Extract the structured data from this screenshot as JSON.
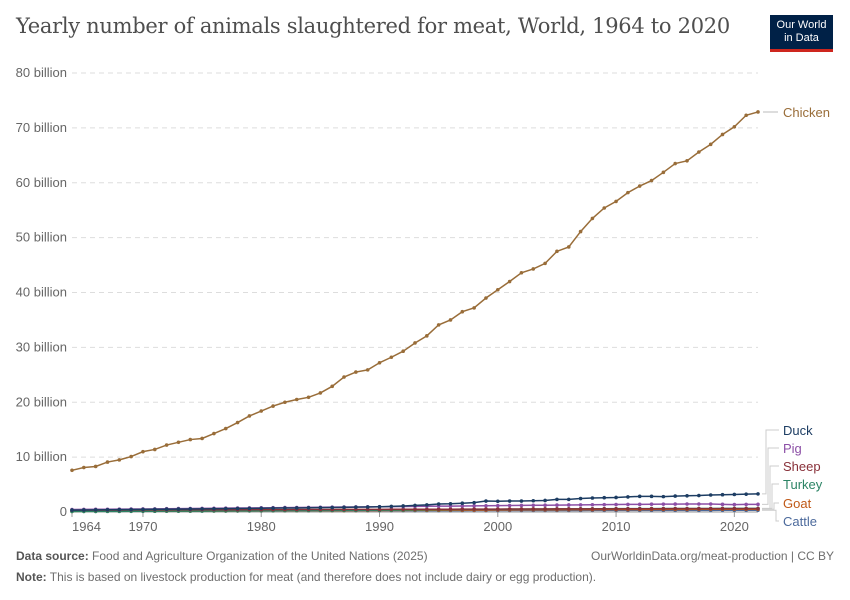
{
  "title": "Yearly number of animals slaughtered for meat, World, 1964 to 2020",
  "logo": {
    "line1": "Our World",
    "line2": "in Data"
  },
  "footer": {
    "source_label": "Data source:",
    "source": "Food and Agriculture Organization of the United Nations (2025)",
    "url": "OurWorldinData.org/meat-production | CC BY",
    "note_label": "Note:",
    "note": "This is based on livestock production for meat (and therefore does not include dairy or egg production)."
  },
  "chart_data": {
    "type": "line",
    "title": "Yearly number of animals slaughtered for meat, World, 1964 to 2020",
    "xlim": [
      1964,
      2022
    ],
    "ylim": [
      0,
      80
    ],
    "grid": true,
    "legend": "right-labels",
    "x_ticks": [
      "1964",
      "1970",
      "1980",
      "1990",
      "2000",
      "2010",
      "2020"
    ],
    "y_ticks": [
      {
        "v": 0,
        "label": "0"
      },
      {
        "v": 10,
        "label": "10 billion"
      },
      {
        "v": 20,
        "label": "20 billion"
      },
      {
        "v": 30,
        "label": "30 billion"
      },
      {
        "v": 40,
        "label": "40 billion"
      },
      {
        "v": 50,
        "label": "50 billion"
      },
      {
        "v": 60,
        "label": "60 billion"
      },
      {
        "v": 70,
        "label": "70 billion"
      },
      {
        "v": 80,
        "label": "80 billion"
      }
    ],
    "unit": "billion",
    "series": [
      {
        "name": "Chicken",
        "color": "#996d39",
        "values": [
          7.6,
          8.1,
          8.3,
          9.1,
          9.5,
          10.1,
          11.0,
          11.4,
          12.2,
          12.7,
          13.2,
          13.4,
          14.3,
          15.2,
          16.3,
          17.5,
          18.4,
          19.3,
          20.0,
          20.5,
          20.9,
          21.7,
          22.9,
          24.6,
          25.5,
          25.9,
          27.2,
          28.2,
          29.3,
          30.8,
          32.1,
          34.1,
          35.0,
          36.5,
          37.2,
          39.0,
          40.5,
          42.0,
          43.6,
          44.3,
          45.3,
          47.5,
          48.3,
          51.1,
          53.5,
          55.4,
          56.6,
          58.2,
          59.4,
          60.4,
          61.9,
          63.5,
          64.0,
          65.6,
          67.0,
          68.8,
          70.2,
          72.3,
          72.9
        ]
      },
      {
        "name": "Duck",
        "color": "#1d3d63",
        "values": [
          0.35,
          0.37,
          0.39,
          0.41,
          0.43,
          0.45,
          0.47,
          0.49,
          0.51,
          0.53,
          0.55,
          0.57,
          0.59,
          0.61,
          0.63,
          0.66,
          0.68,
          0.7,
          0.72,
          0.74,
          0.77,
          0.79,
          0.82,
          0.85,
          0.88,
          0.91,
          0.95,
          1.02,
          1.1,
          1.2,
          1.3,
          1.45,
          1.5,
          1.6,
          1.7,
          2.0,
          1.95,
          2.0,
          2.0,
          2.05,
          2.1,
          2.3,
          2.3,
          2.45,
          2.55,
          2.6,
          2.65,
          2.75,
          2.85,
          2.85,
          2.8,
          2.9,
          2.95,
          3.0,
          3.1,
          3.15,
          3.2,
          3.25,
          3.3
        ]
      },
      {
        "name": "Pig",
        "color": "#8c4fa6",
        "values": [
          0.45,
          0.47,
          0.49,
          0.5,
          0.52,
          0.54,
          0.55,
          0.57,
          0.6,
          0.62,
          0.64,
          0.66,
          0.68,
          0.7,
          0.72,
          0.74,
          0.76,
          0.78,
          0.8,
          0.82,
          0.84,
          0.86,
          0.88,
          0.9,
          0.92,
          0.94,
          0.96,
          0.98,
          1.0,
          1.02,
          1.04,
          1.06,
          1.08,
          1.1,
          1.12,
          1.14,
          1.16,
          1.18,
          1.2,
          1.22,
          1.24,
          1.26,
          1.28,
          1.3,
          1.32,
          1.34,
          1.36,
          1.38,
          1.4,
          1.42,
          1.43,
          1.44,
          1.45,
          1.46,
          1.45,
          1.4,
          1.35,
          1.38,
          1.4
        ]
      },
      {
        "name": "Sheep",
        "color": "#883039",
        "values": [
          0.35,
          0.36,
          0.36,
          0.37,
          0.37,
          0.38,
          0.38,
          0.39,
          0.39,
          0.4,
          0.4,
          0.41,
          0.41,
          0.42,
          0.42,
          0.43,
          0.43,
          0.44,
          0.44,
          0.45,
          0.45,
          0.46,
          0.46,
          0.47,
          0.47,
          0.48,
          0.48,
          0.49,
          0.49,
          0.5,
          0.5,
          0.51,
          0.51,
          0.52,
          0.52,
          0.53,
          0.53,
          0.54,
          0.54,
          0.55,
          0.55,
          0.56,
          0.56,
          0.57,
          0.57,
          0.58,
          0.58,
          0.59,
          0.59,
          0.6,
          0.6,
          0.61,
          0.61,
          0.62,
          0.62,
          0.62,
          0.62,
          0.62,
          0.62
        ]
      },
      {
        "name": "Turkey",
        "color": "#2c8465",
        "values": [
          0.1,
          0.11,
          0.11,
          0.12,
          0.12,
          0.13,
          0.13,
          0.14,
          0.15,
          0.15,
          0.16,
          0.17,
          0.18,
          0.19,
          0.2,
          0.21,
          0.22,
          0.23,
          0.24,
          0.25,
          0.26,
          0.27,
          0.28,
          0.29,
          0.3,
          0.32,
          0.33,
          0.35,
          0.37,
          0.39,
          0.41,
          0.43,
          0.45,
          0.47,
          0.49,
          0.5,
          0.51,
          0.52,
          0.53,
          0.54,
          0.55,
          0.56,
          0.57,
          0.58,
          0.59,
          0.6,
          0.61,
          0.61,
          0.62,
          0.62,
          0.63,
          0.63,
          0.64,
          0.64,
          0.64,
          0.65,
          0.65,
          0.65,
          0.65
        ]
      },
      {
        "name": "Goat",
        "color": "#c05917",
        "values": [
          0.12,
          0.13,
          0.13,
          0.14,
          0.14,
          0.15,
          0.15,
          0.16,
          0.16,
          0.17,
          0.17,
          0.18,
          0.19,
          0.19,
          0.2,
          0.21,
          0.21,
          0.22,
          0.23,
          0.23,
          0.24,
          0.25,
          0.25,
          0.26,
          0.27,
          0.27,
          0.28,
          0.29,
          0.3,
          0.31,
          0.32,
          0.33,
          0.34,
          0.35,
          0.36,
          0.37,
          0.38,
          0.39,
          0.4,
          0.41,
          0.42,
          0.42,
          0.43,
          0.44,
          0.44,
          0.45,
          0.45,
          0.46,
          0.46,
          0.47,
          0.47,
          0.48,
          0.48,
          0.49,
          0.49,
          0.5,
          0.5,
          0.5,
          0.5
        ]
      },
      {
        "name": "Cattle",
        "color": "#4c6a9c",
        "values": [
          0.18,
          0.18,
          0.19,
          0.19,
          0.19,
          0.2,
          0.2,
          0.2,
          0.2,
          0.21,
          0.21,
          0.21,
          0.22,
          0.22,
          0.22,
          0.22,
          0.23,
          0.23,
          0.23,
          0.23,
          0.24,
          0.24,
          0.24,
          0.24,
          0.25,
          0.25,
          0.25,
          0.25,
          0.25,
          0.26,
          0.26,
          0.26,
          0.26,
          0.26,
          0.27,
          0.27,
          0.27,
          0.27,
          0.27,
          0.28,
          0.28,
          0.28,
          0.28,
          0.28,
          0.29,
          0.29,
          0.29,
          0.29,
          0.29,
          0.3,
          0.3,
          0.3,
          0.3,
          0.3,
          0.3,
          0.31,
          0.31,
          0.31,
          0.31
        ]
      }
    ]
  }
}
